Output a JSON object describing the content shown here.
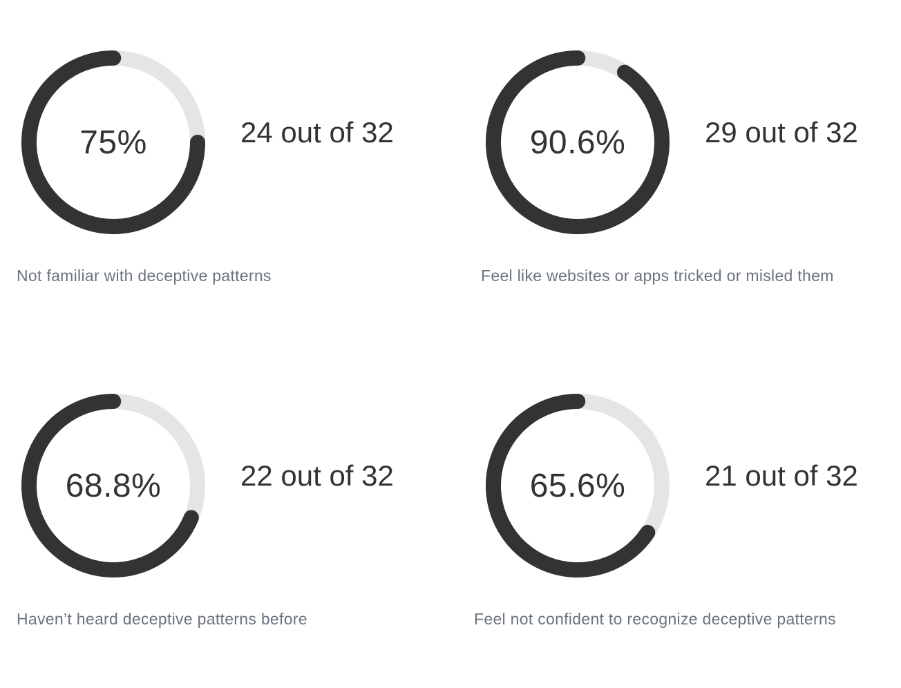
{
  "colors": {
    "ring_fill": "#333333",
    "ring_track": "#e5e5e5",
    "text_primary": "#333333",
    "text_caption": "#6b7280"
  },
  "chart_data": [
    {
      "type": "pie",
      "value_percent": 75,
      "label": "75%",
      "count": "24 out of 32",
      "caption": "Not familiar with deceptive patterns"
    },
    {
      "type": "pie",
      "value_percent": 90.6,
      "label": "90.6%",
      "count": "29 out of 32",
      "caption": "Feel like websites or apps tricked or misled them"
    },
    {
      "type": "pie",
      "value_percent": 68.8,
      "label": "68.8%",
      "count": "22 out of 32",
      "caption": "Haven’t heard deceptive patterns before"
    },
    {
      "type": "pie",
      "value_percent": 65.6,
      "label": "65.6%",
      "count": "21 out of 32",
      "caption": "Feel not confident to recognize deceptive patterns"
    }
  ]
}
